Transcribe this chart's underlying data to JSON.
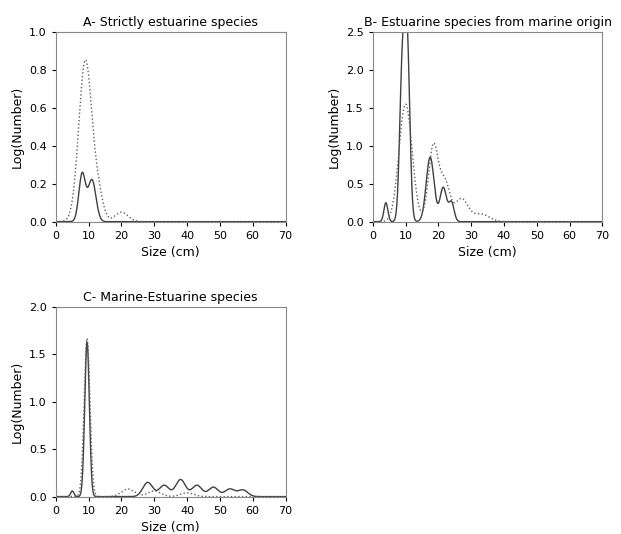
{
  "title_A": "A- Strictly estuarine species",
  "title_B": "B- Estuarine species from marine origin",
  "title_C": "C- Marine-Estuarine species",
  "xlabel": "Size (cm)",
  "ylabel": "Log(Number)",
  "background_color": "#ffffff",
  "line_color_solid": "#404040",
  "line_color_dashed": "#606060",
  "xlim": [
    0,
    70
  ],
  "ylim_A": [
    0.0,
    1.0
  ],
  "ylim_B": [
    0.0,
    2.5
  ],
  "ylim_C": [
    0.0,
    2.0
  ],
  "yticks_A": [
    0.0,
    0.2,
    0.4,
    0.6,
    0.8,
    1.0
  ],
  "yticks_B": [
    0.0,
    0.5,
    1.0,
    1.5,
    2.0,
    2.5
  ],
  "yticks_C": [
    0.0,
    0.5,
    1.0,
    1.5,
    2.0
  ],
  "xticks": [
    0,
    10,
    20,
    30,
    40,
    50,
    60,
    70
  ]
}
